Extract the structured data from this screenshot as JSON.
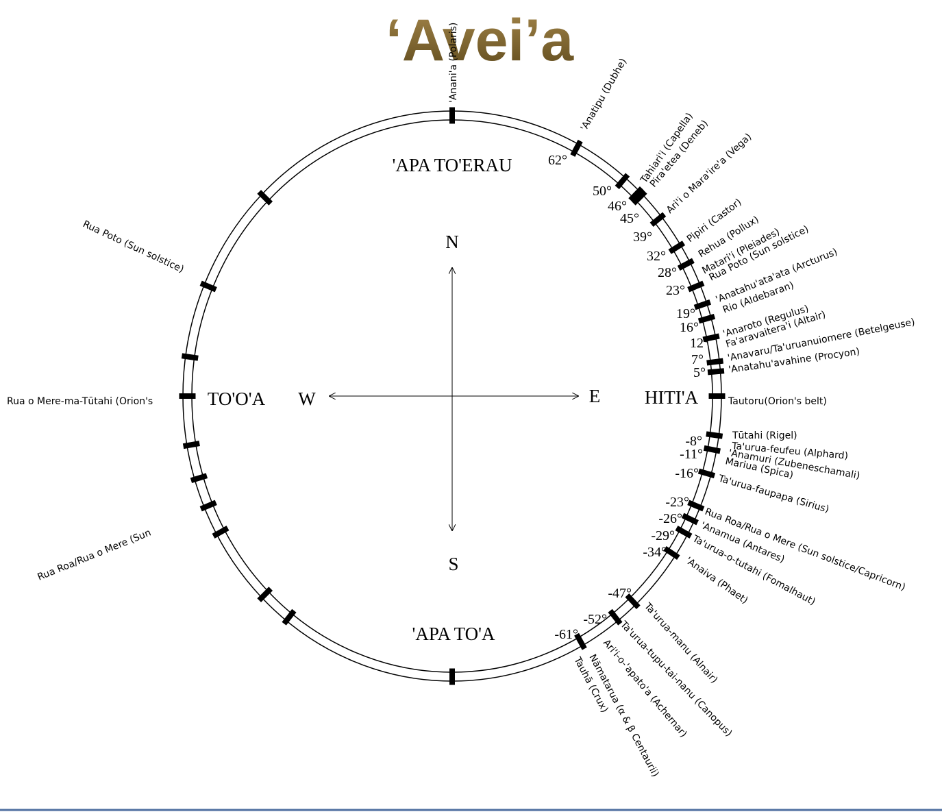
{
  "title": "‘Avei’a",
  "regions": {
    "north": "'APA TO'ERAU",
    "south": "'APA TO'A",
    "west": "TO'O'A",
    "east": "HITI'A"
  },
  "compass": {
    "n": "N",
    "s": "S",
    "w": "W",
    "e": "E"
  },
  "polaris": "'Anani'a (Polaris)",
  "right_stars": [
    "'Anatipu (Dubhe)",
    "Tahiari'i (Capella)",
    "Pira'etea (Deneb)",
    "Ari'i o Mara'ire'a (Vega)",
    "Pipiri (Castor)",
    "Rehua (Pollux)",
    "Matari'i (Pleiades)",
    "Rua Poto  (Sun solstice)",
    "'Anatahu'ata'ata (Arcturus)",
    "Rio (Aldebaran)",
    "'Anaroto (Regulus)",
    "Fa'aravaitera'i (Altair)",
    "'Anavaru/Ta'uruanuiomere  (Betelgeuse)",
    "'Anatahu'avahine (Procyon)",
    "Tautoru(Orion's belt)",
    "Tūtahi (Rigel)",
    "Ta'urua-feufeu (Alphard)",
    "'Anamuri (Zubeneschamali)",
    "Mariua (Spica)",
    "Ta'urua-faupapa (Sirius)",
    "Rua Roa/Rua o Mere (Sun solstice/Capricorn)",
    "'Anamua (Antares)",
    "Ta'urua-o-tutahi (Fomalhaut)",
    "'Anaiva (Phaet)",
    "Ta'urua-manu (Alnair)",
    "Ta'urua-tupu-tai-nanu (Canopus)",
    "Ari'i-o-'apato'a (Achernar)",
    "Nāmatarua (α & β Centaurii)",
    "Tauhā (Crux)"
  ],
  "left_stars": [
    "Rua Poto (Sun solstice)",
    "Rua o Mere-ma-Tūtahi (Orion's",
    "Rua Roa/Rua o Mere (Sun"
  ],
  "declinations": [
    {
      "value": 62,
      "label": "62°"
    },
    {
      "value": 50,
      "label": "50°"
    },
    {
      "value": 46,
      "label": "46°"
    },
    {
      "value": 45,
      "label": "45°"
    },
    {
      "value": 39,
      "label": "39°"
    },
    {
      "value": 32,
      "label": "32°"
    },
    {
      "value": 28,
      "label": "28°"
    },
    {
      "value": 23,
      "label": "23°"
    },
    {
      "value": 19,
      "label": "19°"
    },
    {
      "value": 16,
      "label": "16°"
    },
    {
      "value": 12,
      "label": "12°"
    },
    {
      "value": 7,
      "label": "7°"
    },
    {
      "value": 5,
      "label": "5°"
    },
    {
      "value": -8,
      "label": "-8°"
    },
    {
      "value": -11,
      "label": "-11°"
    },
    {
      "value": -16,
      "label": "-16°"
    },
    {
      "value": -23,
      "label": "-23°"
    },
    {
      "value": -26,
      "label": "-26°"
    },
    {
      "value": -29,
      "label": "-29°"
    },
    {
      "value": -34,
      "label": "-34°"
    },
    {
      "value": -47,
      "label": "-47°"
    },
    {
      "value": -52,
      "label": "-52°"
    },
    {
      "value": -61,
      "label": "-61°"
    }
  ]
}
